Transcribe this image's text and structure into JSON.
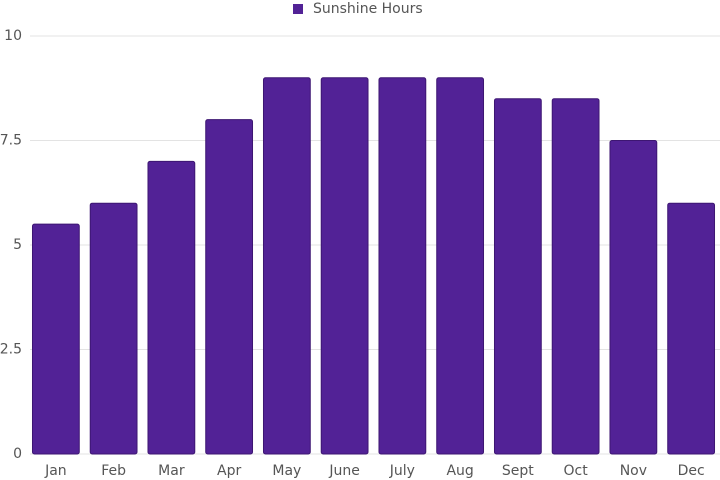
{
  "chart_data": {
    "type": "bar",
    "categories": [
      "Jan",
      "Feb",
      "Mar",
      "Apr",
      "May",
      "June",
      "July",
      "Aug",
      "Sept",
      "Oct",
      "Nov",
      "Dec"
    ],
    "series": [
      {
        "name": "Sunshine Hours",
        "color": "#522296",
        "values": [
          5.5,
          6,
          7,
          8,
          9,
          9,
          9,
          9,
          8.5,
          8.5,
          7.5,
          6
        ]
      }
    ],
    "ylim": [
      0,
      10
    ],
    "yticks": [
      0,
      2.5,
      5,
      7.5,
      10
    ],
    "grid": true,
    "legend": "top"
  }
}
